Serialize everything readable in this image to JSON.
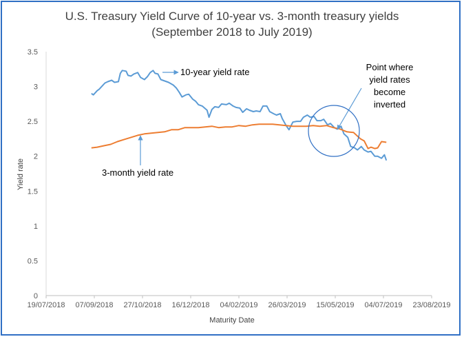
{
  "chart_data": {
    "type": "line",
    "title": "U.S. Treasury Yield Curve of 10-year vs. 3-month treasury yields",
    "subtitle": "(September 2018 to July 2019)",
    "xlabel": "Maturity Date",
    "ylabel": "Yield rate",
    "ylim": [
      0,
      3.5
    ],
    "yticks": [
      "0",
      "0.5",
      "1",
      "1.5",
      "2",
      "2.5",
      "3",
      "3.5"
    ],
    "xlim": [
      "2018-07-19",
      "2019-08-23"
    ],
    "xticks": [
      {
        "date": "2018-07-19",
        "label": "19/07/2018"
      },
      {
        "date": "2018-09-07",
        "label": "07/09/2018"
      },
      {
        "date": "2018-10-27",
        "label": "27/10/2018"
      },
      {
        "date": "2018-12-16",
        "label": "16/12/2018"
      },
      {
        "date": "2019-02-04",
        "label": "04/02/2019"
      },
      {
        "date": "2019-03-26",
        "label": "26/03/2019"
      },
      {
        "date": "2019-05-15",
        "label": "15/05/2019"
      },
      {
        "date": "2019-07-04",
        "label": "04/07/2019"
      },
      {
        "date": "2019-08-23",
        "label": "23/08/2019"
      }
    ],
    "grid": false,
    "series": [
      {
        "label_key": "ten_year",
        "color": "#5b9bd5",
        "points": [
          [
            "2018-09-04",
            2.9
          ],
          [
            "2018-09-06",
            2.88
          ],
          [
            "2018-09-10",
            2.94
          ],
          [
            "2018-09-12",
            2.96
          ],
          [
            "2018-09-14",
            2.99
          ],
          [
            "2018-09-18",
            3.05
          ],
          [
            "2018-09-21",
            3.07
          ],
          [
            "2018-09-25",
            3.09
          ],
          [
            "2018-09-28",
            3.06
          ],
          [
            "2018-10-02",
            3.07
          ],
          [
            "2018-10-04",
            3.19
          ],
          [
            "2018-10-06",
            3.23
          ],
          [
            "2018-10-10",
            3.22
          ],
          [
            "2018-10-12",
            3.16
          ],
          [
            "2018-10-15",
            3.15
          ],
          [
            "2018-10-18",
            3.18
          ],
          [
            "2018-10-22",
            3.2
          ],
          [
            "2018-10-25",
            3.13
          ],
          [
            "2018-10-29",
            3.1
          ],
          [
            "2018-11-01",
            3.14
          ],
          [
            "2018-11-04",
            3.2
          ],
          [
            "2018-11-07",
            3.23
          ],
          [
            "2018-11-09",
            3.19
          ],
          [
            "2018-11-12",
            3.18
          ],
          [
            "2018-11-15",
            3.1
          ],
          [
            "2018-11-19",
            3.08
          ],
          [
            "2018-11-23",
            3.06
          ],
          [
            "2018-11-28",
            3.02
          ],
          [
            "2018-12-01",
            2.98
          ],
          [
            "2018-12-04",
            2.92
          ],
          [
            "2018-12-07",
            2.85
          ],
          [
            "2018-12-11",
            2.88
          ],
          [
            "2018-12-14",
            2.89
          ],
          [
            "2018-12-18",
            2.82
          ],
          [
            "2018-12-21",
            2.79
          ],
          [
            "2018-12-24",
            2.74
          ],
          [
            "2018-12-28",
            2.72
          ],
          [
            "2019-01-02",
            2.66
          ],
          [
            "2019-01-04",
            2.56
          ],
          [
            "2019-01-07",
            2.67
          ],
          [
            "2019-01-10",
            2.71
          ],
          [
            "2019-01-14",
            2.7
          ],
          [
            "2019-01-17",
            2.75
          ],
          [
            "2019-01-22",
            2.74
          ],
          [
            "2019-01-25",
            2.76
          ],
          [
            "2019-01-29",
            2.72
          ],
          [
            "2019-02-01",
            2.7
          ],
          [
            "2019-02-05",
            2.69
          ],
          [
            "2019-02-08",
            2.63
          ],
          [
            "2019-02-12",
            2.68
          ],
          [
            "2019-02-15",
            2.66
          ],
          [
            "2019-02-19",
            2.64
          ],
          [
            "2019-02-22",
            2.65
          ],
          [
            "2019-02-26",
            2.64
          ],
          [
            "2019-03-01",
            2.72
          ],
          [
            "2019-03-05",
            2.72
          ],
          [
            "2019-03-08",
            2.64
          ],
          [
            "2019-03-12",
            2.61
          ],
          [
            "2019-03-15",
            2.59
          ],
          [
            "2019-03-19",
            2.61
          ],
          [
            "2019-03-21",
            2.54
          ],
          [
            "2019-03-25",
            2.44
          ],
          [
            "2019-03-28",
            2.38
          ],
          [
            "2019-04-01",
            2.49
          ],
          [
            "2019-04-05",
            2.5
          ],
          [
            "2019-04-09",
            2.5
          ],
          [
            "2019-04-12",
            2.56
          ],
          [
            "2019-04-16",
            2.59
          ],
          [
            "2019-04-19",
            2.56
          ],
          [
            "2019-04-23",
            2.57
          ],
          [
            "2019-04-26",
            2.51
          ],
          [
            "2019-04-30",
            2.51
          ],
          [
            "2019-05-03",
            2.53
          ],
          [
            "2019-05-07",
            2.45
          ],
          [
            "2019-05-10",
            2.47
          ],
          [
            "2019-05-14",
            2.41
          ],
          [
            "2019-05-17",
            2.39
          ],
          [
            "2019-05-21",
            2.43
          ],
          [
            "2019-05-24",
            2.32
          ],
          [
            "2019-05-28",
            2.27
          ],
          [
            "2019-05-31",
            2.14
          ],
          [
            "2019-06-04",
            2.12
          ],
          [
            "2019-06-07",
            2.09
          ],
          [
            "2019-06-11",
            2.14
          ],
          [
            "2019-06-14",
            2.09
          ],
          [
            "2019-06-18",
            2.06
          ],
          [
            "2019-06-21",
            2.07
          ],
          [
            "2019-06-25",
            2.0
          ],
          [
            "2019-06-28",
            2.0
          ],
          [
            "2019-07-02",
            1.97
          ],
          [
            "2019-07-05",
            2.02
          ],
          [
            "2019-07-07",
            1.94
          ]
        ]
      },
      {
        "label_key": "three_month",
        "color": "#ed7d31",
        "points": [
          [
            "2018-09-04",
            2.12
          ],
          [
            "2018-09-10",
            2.13
          ],
          [
            "2018-09-17",
            2.15
          ],
          [
            "2018-09-24",
            2.17
          ],
          [
            "2018-10-01",
            2.21
          ],
          [
            "2018-10-08",
            2.24
          ],
          [
            "2018-10-15",
            2.27
          ],
          [
            "2018-10-22",
            2.3
          ],
          [
            "2018-10-29",
            2.32
          ],
          [
            "2018-11-05",
            2.33
          ],
          [
            "2018-11-12",
            2.34
          ],
          [
            "2018-11-19",
            2.35
          ],
          [
            "2018-11-26",
            2.38
          ],
          [
            "2018-12-03",
            2.38
          ],
          [
            "2018-12-10",
            2.41
          ],
          [
            "2018-12-17",
            2.41
          ],
          [
            "2018-12-24",
            2.41
          ],
          [
            "2018-12-31",
            2.42
          ],
          [
            "2019-01-07",
            2.43
          ],
          [
            "2019-01-14",
            2.41
          ],
          [
            "2019-01-21",
            2.42
          ],
          [
            "2019-01-28",
            2.42
          ],
          [
            "2019-02-04",
            2.44
          ],
          [
            "2019-02-11",
            2.43
          ],
          [
            "2019-02-18",
            2.45
          ],
          [
            "2019-02-25",
            2.46
          ],
          [
            "2019-03-04",
            2.46
          ],
          [
            "2019-03-11",
            2.46
          ],
          [
            "2019-03-18",
            2.45
          ],
          [
            "2019-03-25",
            2.44
          ],
          [
            "2019-04-01",
            2.43
          ],
          [
            "2019-04-08",
            2.43
          ],
          [
            "2019-04-15",
            2.43
          ],
          [
            "2019-04-22",
            2.44
          ],
          [
            "2019-04-29",
            2.43
          ],
          [
            "2019-05-06",
            2.44
          ],
          [
            "2019-05-13",
            2.41
          ],
          [
            "2019-05-20",
            2.39
          ],
          [
            "2019-05-27",
            2.35
          ],
          [
            "2019-06-03",
            2.34
          ],
          [
            "2019-06-10",
            2.25
          ],
          [
            "2019-06-14",
            2.22
          ],
          [
            "2019-06-18",
            2.11
          ],
          [
            "2019-06-21",
            2.13
          ],
          [
            "2019-06-25",
            2.11
          ],
          [
            "2019-06-28",
            2.12
          ],
          [
            "2019-07-02",
            2.21
          ],
          [
            "2019-07-07",
            2.2
          ]
        ]
      }
    ]
  },
  "labels": {
    "ten_year": "10-year yield rate",
    "three_month": "3-month yield rate",
    "inversion": [
      "Point where",
      "yield rates",
      "become",
      "inverted"
    ]
  },
  "colors": {
    "ten_year": "#5b9bd5",
    "three_month": "#ed7d31",
    "frame_border": "#2f6fc4",
    "annotation_arrow": "#5b9bd5",
    "axis_text": "#595959"
  }
}
